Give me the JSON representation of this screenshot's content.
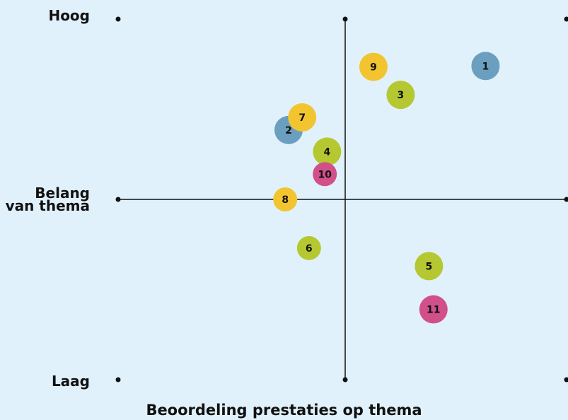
{
  "chart_data": {
    "type": "scatter",
    "title": "",
    "xlabel": "Beoordeling prestaties op thema",
    "ylabel": "Belang van thema",
    "y_top_label": "Hoog",
    "y_mid_label": [
      "Belang",
      "van thema"
    ],
    "y_bottom_label": "Laag",
    "xlim": [
      -1,
      1
    ],
    "ylim": [
      -1,
      1
    ],
    "grid": false,
    "colors": {
      "blue": "#6a9fbf",
      "yellow": "#f2c530",
      "green": "#b5c832",
      "pink": "#d1508a"
    },
    "points": [
      {
        "label": "1",
        "x": 0.62,
        "y": 0.74,
        "color": "blue"
      },
      {
        "label": "2",
        "x": -0.25,
        "y": 0.385,
        "color": "blue"
      },
      {
        "label": "3",
        "x": 0.245,
        "y": 0.58,
        "color": "green"
      },
      {
        "label": "4",
        "x": -0.08,
        "y": 0.265,
        "color": "green"
      },
      {
        "label": "5",
        "x": 0.37,
        "y": -0.37,
        "color": "green"
      },
      {
        "label": "6",
        "x": -0.16,
        "y": -0.27,
        "color": "green"
      },
      {
        "label": "7",
        "x": -0.19,
        "y": 0.455,
        "color": "yellow"
      },
      {
        "label": "8",
        "x": -0.265,
        "y": 0.0,
        "color": "yellow"
      },
      {
        "label": "9",
        "x": 0.125,
        "y": 0.735,
        "color": "yellow"
      },
      {
        "label": "10",
        "x": -0.09,
        "y": 0.14,
        "color": "pink"
      },
      {
        "label": "11",
        "x": 0.39,
        "y": -0.61,
        "color": "pink"
      }
    ]
  }
}
